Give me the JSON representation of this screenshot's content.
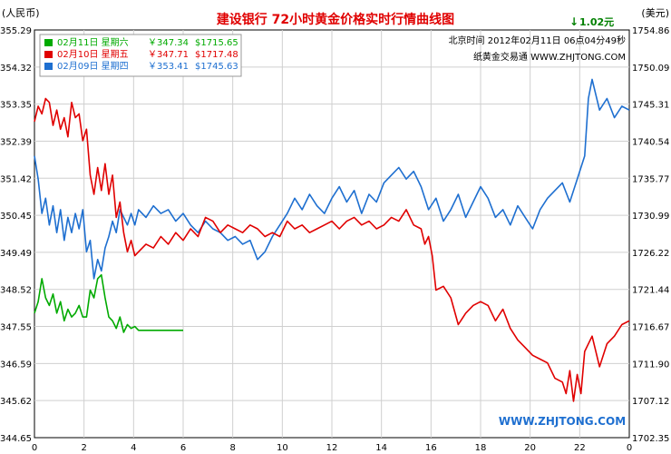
{
  "chart_data": {
    "type": "line",
    "title": "建设银行 72小时黄金价格实时行情曲线图",
    "ylabel_left": "(人民币)",
    "ylabel_right": "(美元)",
    "y_ticks_left": [
      "355.29",
      "354.32",
      "353.35",
      "352.39",
      "351.42",
      "350.45",
      "349.49",
      "348.52",
      "347.55",
      "346.59",
      "345.62",
      "344.65"
    ],
    "y_ticks_right": [
      "1754.86",
      "1750.09",
      "1745.31",
      "1740.54",
      "1735.77",
      "1730.99",
      "1726.22",
      "1721.44",
      "1716.67",
      "1711.90",
      "1707.12",
      "1702.35"
    ],
    "ylim_left": [
      344.65,
      355.29
    ],
    "ylim_right": [
      1702.35,
      1754.86
    ],
    "x_ticks": [
      "0",
      "2",
      "4",
      "6",
      "8",
      "10",
      "12",
      "14",
      "16",
      "18",
      "20",
      "22",
      "0"
    ],
    "xlim": [
      0,
      24
    ],
    "grid": true,
    "info_line1": "北京时间 2012年02月11日 06点04分49秒",
    "info_line2": "纸黄金交易通 WWW.ZHJTONG.COM",
    "change": "1.02元",
    "watermark": "WWW.ZHJTONG.COM",
    "legend_position": "top-left",
    "series": [
      {
        "name": "02月11日 星期六",
        "price_cny": "￥347.34",
        "price_usd": "$1715.65",
        "color": "#00aa00",
        "x": [
          0,
          0.15,
          0.3,
          0.45,
          0.6,
          0.75,
          0.9,
          1.05,
          1.2,
          1.35,
          1.5,
          1.65,
          1.8,
          1.95,
          2.1,
          2.25,
          2.4,
          2.55,
          2.7,
          2.85,
          3.0,
          3.15,
          3.3,
          3.45,
          3.6,
          3.75,
          3.9,
          4.05,
          4.2,
          4.5,
          5.0,
          5.5,
          6.0
        ],
        "y": [
          347.9,
          348.2,
          348.8,
          348.3,
          348.1,
          348.4,
          347.9,
          348.2,
          347.7,
          348.0,
          347.8,
          347.9,
          348.1,
          347.8,
          347.8,
          348.5,
          348.3,
          348.8,
          348.9,
          348.3,
          347.8,
          347.7,
          347.5,
          347.8,
          347.4,
          347.6,
          347.5,
          347.55,
          347.45,
          347.45,
          347.45,
          347.45,
          347.45
        ]
      },
      {
        "name": "02月10日 星期五",
        "price_cny": "￥347.71",
        "price_usd": "$1717.48",
        "color": "#e00000",
        "x": [
          0,
          0.15,
          0.3,
          0.45,
          0.6,
          0.75,
          0.9,
          1.05,
          1.2,
          1.35,
          1.5,
          1.65,
          1.8,
          1.95,
          2.1,
          2.25,
          2.4,
          2.55,
          2.7,
          2.85,
          3.0,
          3.15,
          3.3,
          3.45,
          3.6,
          3.75,
          3.9,
          4.05,
          4.2,
          4.5,
          4.8,
          5.1,
          5.4,
          5.7,
          6.0,
          6.3,
          6.6,
          6.9,
          7.2,
          7.5,
          7.8,
          8.1,
          8.4,
          8.7,
          9.0,
          9.3,
          9.6,
          9.9,
          10.2,
          10.5,
          10.8,
          11.1,
          11.4,
          11.7,
          12.0,
          12.3,
          12.6,
          12.9,
          13.2,
          13.5,
          13.8,
          14.1,
          14.4,
          14.7,
          15.0,
          15.3,
          15.6,
          15.75,
          15.9,
          16.05,
          16.2,
          16.5,
          16.8,
          17.1,
          17.4,
          17.7,
          18.0,
          18.3,
          18.6,
          18.9,
          19.2,
          19.5,
          19.8,
          20.1,
          20.4,
          20.7,
          21.0,
          21.3,
          21.45,
          21.6,
          21.75,
          21.9,
          22.05,
          22.2,
          22.5,
          22.8,
          23.1,
          23.4,
          23.7,
          24.0
        ],
        "y": [
          352.9,
          353.3,
          353.1,
          353.5,
          353.4,
          352.8,
          353.2,
          352.7,
          353.0,
          352.5,
          353.4,
          353.0,
          353.1,
          352.4,
          352.7,
          351.5,
          351.0,
          351.7,
          351.1,
          351.8,
          351.0,
          351.5,
          350.4,
          350.8,
          350.0,
          349.5,
          349.8,
          349.4,
          349.5,
          349.7,
          349.6,
          349.9,
          349.7,
          350.0,
          349.8,
          350.1,
          349.9,
          350.4,
          350.3,
          350.0,
          350.2,
          350.1,
          350.0,
          350.2,
          350.1,
          349.9,
          350.0,
          349.9,
          350.3,
          350.1,
          350.2,
          350.0,
          350.1,
          350.2,
          350.3,
          350.1,
          350.3,
          350.4,
          350.2,
          350.3,
          350.1,
          350.2,
          350.4,
          350.3,
          350.6,
          350.2,
          350.1,
          349.7,
          349.9,
          349.4,
          348.5,
          348.6,
          348.3,
          347.6,
          347.9,
          348.1,
          348.2,
          348.1,
          347.7,
          348.0,
          347.5,
          347.2,
          347.0,
          346.8,
          346.7,
          346.6,
          346.2,
          346.1,
          345.8,
          346.4,
          345.6,
          346.3,
          345.8,
          346.9,
          347.3,
          346.5,
          347.1,
          347.3,
          347.6,
          347.7
        ]
      },
      {
        "name": "02月09日 星期四",
        "price_cny": "￥353.41",
        "price_usd": "$1745.63",
        "color": "#1e6fd0",
        "x": [
          0,
          0.15,
          0.3,
          0.45,
          0.6,
          0.75,
          0.9,
          1.05,
          1.2,
          1.35,
          1.5,
          1.65,
          1.8,
          1.95,
          2.1,
          2.25,
          2.4,
          2.55,
          2.7,
          2.85,
          3.0,
          3.15,
          3.3,
          3.45,
          3.6,
          3.75,
          3.9,
          4.05,
          4.2,
          4.5,
          4.8,
          5.1,
          5.4,
          5.7,
          6.0,
          6.3,
          6.6,
          6.9,
          7.2,
          7.5,
          7.8,
          8.1,
          8.4,
          8.7,
          9.0,
          9.3,
          9.6,
          9.9,
          10.2,
          10.5,
          10.8,
          11.1,
          11.4,
          11.7,
          12.0,
          12.3,
          12.6,
          12.9,
          13.2,
          13.5,
          13.8,
          14.1,
          14.4,
          14.7,
          15.0,
          15.3,
          15.6,
          15.9,
          16.2,
          16.5,
          16.8,
          17.1,
          17.4,
          17.7,
          18.0,
          18.3,
          18.6,
          18.9,
          19.2,
          19.5,
          19.8,
          20.1,
          20.4,
          20.7,
          21.0,
          21.3,
          21.6,
          21.9,
          22.2,
          22.35,
          22.5,
          22.65,
          22.8,
          23.1,
          23.4,
          23.7,
          24.0
        ],
        "y": [
          352.0,
          351.4,
          350.5,
          350.9,
          350.2,
          350.7,
          350.0,
          350.6,
          349.8,
          350.4,
          350.0,
          350.5,
          350.1,
          350.6,
          349.5,
          349.8,
          348.8,
          349.3,
          349.0,
          349.6,
          349.9,
          350.3,
          350.0,
          350.6,
          350.4,
          350.2,
          350.5,
          350.2,
          350.6,
          350.4,
          350.7,
          350.5,
          350.6,
          350.3,
          350.5,
          350.2,
          350.0,
          350.3,
          350.1,
          350.0,
          349.8,
          349.9,
          349.7,
          349.8,
          349.3,
          349.5,
          349.9,
          350.2,
          350.5,
          350.9,
          350.6,
          351.0,
          350.7,
          350.5,
          350.9,
          351.2,
          350.8,
          351.1,
          350.5,
          351.0,
          350.8,
          351.3,
          351.5,
          351.7,
          351.4,
          351.6,
          351.2,
          350.6,
          350.9,
          350.3,
          350.6,
          351.0,
          350.4,
          350.8,
          351.2,
          350.9,
          350.4,
          350.6,
          350.2,
          350.7,
          350.4,
          350.1,
          350.6,
          350.9,
          351.1,
          351.3,
          350.8,
          351.4,
          352.0,
          353.5,
          354.0,
          353.6,
          353.2,
          353.5,
          353.0,
          353.3,
          353.2
        ]
      }
    ]
  }
}
